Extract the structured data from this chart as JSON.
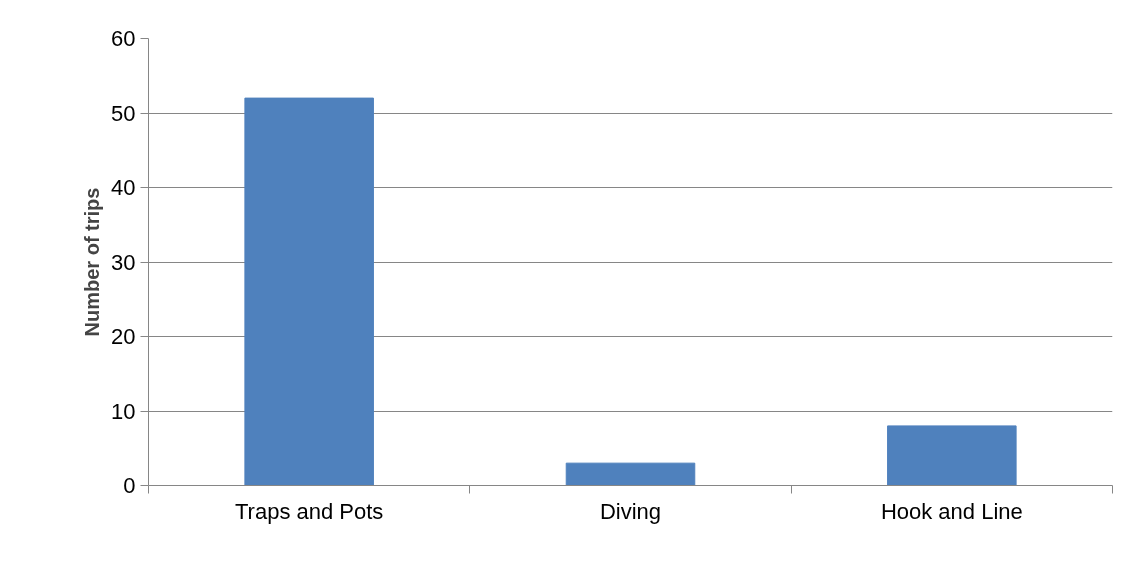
{
  "chart_data": {
    "type": "bar",
    "ylabel": "Number of trips",
    "categories": [
      "Traps and Pots",
      "Diving",
      "Hook and Line"
    ],
    "values": [
      52,
      3,
      8
    ],
    "color": "#4f81bd",
    "ylim": [
      0,
      60
    ],
    "yticks": [
      0,
      10,
      20,
      30,
      40,
      50,
      60
    ],
    "grid": "y"
  }
}
